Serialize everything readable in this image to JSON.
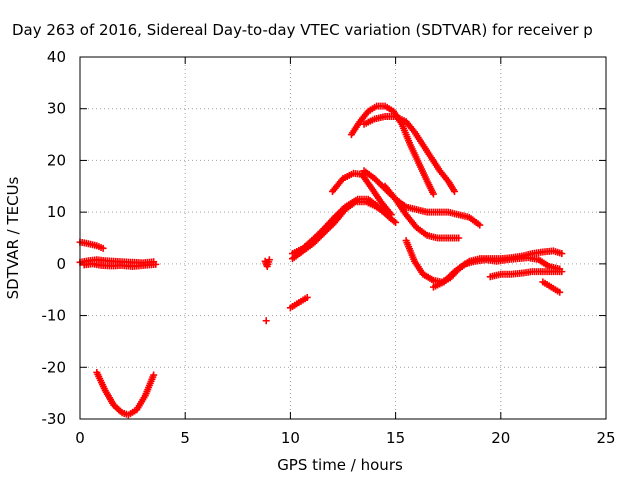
{
  "chart_data": {
    "type": "scatter",
    "title": "Day 263 of 2016, Sidereal Day-to-day VTEC variation (SDTVAR) for receiver p",
    "xlabel": "GPS time / hours",
    "ylabel": "SDTVAR / TECUs",
    "xlim": [
      0,
      25
    ],
    "ylim": [
      -30,
      40
    ],
    "xticks": [
      0,
      5,
      10,
      15,
      20,
      25
    ],
    "yticks": [
      -30,
      -20,
      -10,
      0,
      10,
      20,
      30,
      40
    ],
    "grid": true,
    "marker": "plus",
    "color": "#ff0000",
    "series": [
      {
        "points": [
          [
            0,
            4.2
          ],
          [
            0.4,
            3.9
          ],
          [
            0.8,
            3.5
          ],
          [
            1.1,
            3.0
          ]
        ]
      },
      {
        "points": [
          [
            0,
            0.3
          ],
          [
            0.4,
            0.6
          ],
          [
            0.8,
            0.8
          ],
          [
            1.2,
            0.6
          ],
          [
            1.6,
            0.5
          ],
          [
            2.0,
            0.4
          ],
          [
            2.5,
            0.3
          ],
          [
            3.0,
            0.2
          ],
          [
            3.5,
            0.4
          ]
        ]
      },
      {
        "points": [
          [
            0.2,
            -0.2
          ],
          [
            0.6,
            0.0
          ],
          [
            1.0,
            -0.3
          ],
          [
            1.5,
            -0.4
          ],
          [
            2.0,
            -0.3
          ],
          [
            2.5,
            -0.5
          ],
          [
            3.0,
            -0.3
          ],
          [
            3.6,
            -0.1
          ]
        ]
      },
      {
        "points": [
          [
            0.8,
            -21
          ],
          [
            1.2,
            -24.5
          ],
          [
            1.6,
            -27.3
          ],
          [
            2.0,
            -28.8
          ],
          [
            2.3,
            -29.2
          ],
          [
            2.7,
            -28.2
          ],
          [
            3.1,
            -25.5
          ],
          [
            3.5,
            -21.5
          ]
        ]
      },
      {
        "points": [
          [
            8.8,
            0.5
          ],
          [
            8.9,
            -0.5
          ],
          [
            9.0,
            0.8
          ]
        ]
      },
      {
        "points": [
          [
            8.85,
            -11
          ]
        ]
      },
      {
        "points": [
          [
            10.0,
            -8.5
          ],
          [
            10.4,
            -7.5
          ],
          [
            10.8,
            -6.5
          ]
        ]
      },
      {
        "points": [
          [
            10.1,
            1.0
          ],
          [
            10.6,
            2.5
          ],
          [
            11.1,
            4.0
          ],
          [
            11.6,
            6.0
          ],
          [
            12.1,
            8.0
          ],
          [
            12.6,
            10.5
          ],
          [
            13.1,
            12.0
          ],
          [
            13.6,
            12.0
          ],
          [
            14.1,
            11.0
          ],
          [
            14.6,
            9.5
          ]
        ]
      },
      {
        "points": [
          [
            10.1,
            2.0
          ],
          [
            10.6,
            3.0
          ],
          [
            11.1,
            4.8
          ],
          [
            11.6,
            6.8
          ],
          [
            12.1,
            9.0
          ],
          [
            12.6,
            11.0
          ],
          [
            13.2,
            12.5
          ],
          [
            13.7,
            12.5
          ],
          [
            14.2,
            11.0
          ],
          [
            14.7,
            9.0
          ],
          [
            15.0,
            8.0
          ]
        ]
      },
      {
        "points": [
          [
            12.0,
            14.0
          ],
          [
            12.5,
            16.5
          ],
          [
            13.0,
            17.5
          ],
          [
            13.4,
            17.3
          ],
          [
            13.8,
            15.0
          ],
          [
            14.3,
            12.0
          ],
          [
            14.8,
            9.5
          ]
        ]
      },
      {
        "points": [
          [
            13.5,
            18.0
          ],
          [
            14.0,
            16.5
          ],
          [
            14.5,
            14.5
          ],
          [
            15.0,
            12.5
          ],
          [
            15.5,
            11.0
          ],
          [
            16.0,
            10.5
          ],
          [
            16.5,
            10.0
          ],
          [
            17.0,
            10.0
          ],
          [
            17.5,
            10.0
          ],
          [
            18.0,
            9.5
          ],
          [
            18.5,
            9.0
          ],
          [
            19.0,
            7.5
          ]
        ]
      },
      {
        "points": [
          [
            14.5,
            15.0
          ],
          [
            15.0,
            12.5
          ],
          [
            15.5,
            9.5
          ],
          [
            16.0,
            7.0
          ],
          [
            16.5,
            5.5
          ],
          [
            17.0,
            5.0
          ],
          [
            17.5,
            5.0
          ],
          [
            18.0,
            5.0
          ]
        ]
      },
      {
        "points": [
          [
            15.5,
            4.5
          ],
          [
            15.9,
            0.5
          ],
          [
            16.3,
            -2.0
          ],
          [
            16.8,
            -3.2
          ],
          [
            17.2,
            -3.5
          ],
          [
            17.6,
            -2.7
          ],
          [
            18.0,
            -1.0
          ],
          [
            18.5,
            0.5
          ],
          [
            19.0,
            1.0
          ],
          [
            19.5,
            1.0
          ],
          [
            20.0,
            1.0
          ],
          [
            20.5,
            1.2
          ],
          [
            21.0,
            1.5
          ],
          [
            21.5,
            2.0
          ],
          [
            22.0,
            2.3
          ],
          [
            22.5,
            2.5
          ],
          [
            22.9,
            2.0
          ]
        ]
      },
      {
        "points": [
          [
            16.8,
            -4.5
          ],
          [
            17.3,
            -3.5
          ],
          [
            17.8,
            -1.5
          ],
          [
            18.3,
            0.0
          ],
          [
            18.8,
            0.5
          ],
          [
            19.3,
            0.8
          ],
          [
            19.8,
            0.5
          ],
          [
            20.3,
            0.8
          ],
          [
            20.8,
            1.0
          ],
          [
            21.3,
            1.2
          ],
          [
            21.8,
            0.8
          ],
          [
            22.3,
            -0.5
          ],
          [
            22.8,
            -1.0
          ]
        ]
      },
      {
        "points": [
          [
            19.5,
            -2.5
          ],
          [
            20.0,
            -2.0
          ],
          [
            20.5,
            -2.0
          ],
          [
            21.0,
            -1.8
          ],
          [
            21.5,
            -1.5
          ],
          [
            22.0,
            -1.5
          ],
          [
            22.5,
            -1.5
          ],
          [
            22.9,
            -1.5
          ]
        ]
      },
      {
        "points": [
          [
            22.0,
            -3.5
          ],
          [
            22.4,
            -4.5
          ],
          [
            22.8,
            -5.5
          ]
        ]
      },
      {
        "points": [
          [
            12.9,
            25.0
          ],
          [
            13.3,
            27.5
          ],
          [
            13.7,
            29.5
          ],
          [
            14.1,
            30.5
          ],
          [
            14.5,
            30.5
          ],
          [
            14.9,
            29.5
          ],
          [
            15.3,
            27.0
          ],
          [
            15.7,
            23.0
          ],
          [
            16.1,
            19.5
          ],
          [
            16.5,
            16.0
          ],
          [
            16.8,
            13.5
          ]
        ]
      },
      {
        "points": [
          [
            13.5,
            27.0
          ],
          [
            14.0,
            28.0
          ],
          [
            14.5,
            28.5
          ],
          [
            15.0,
            28.5
          ],
          [
            15.5,
            27.5
          ],
          [
            15.9,
            25.5
          ],
          [
            16.3,
            23.0
          ],
          [
            16.7,
            20.5
          ],
          [
            17.1,
            18.0
          ],
          [
            17.5,
            16.0
          ],
          [
            17.8,
            14.0
          ]
        ]
      }
    ]
  }
}
